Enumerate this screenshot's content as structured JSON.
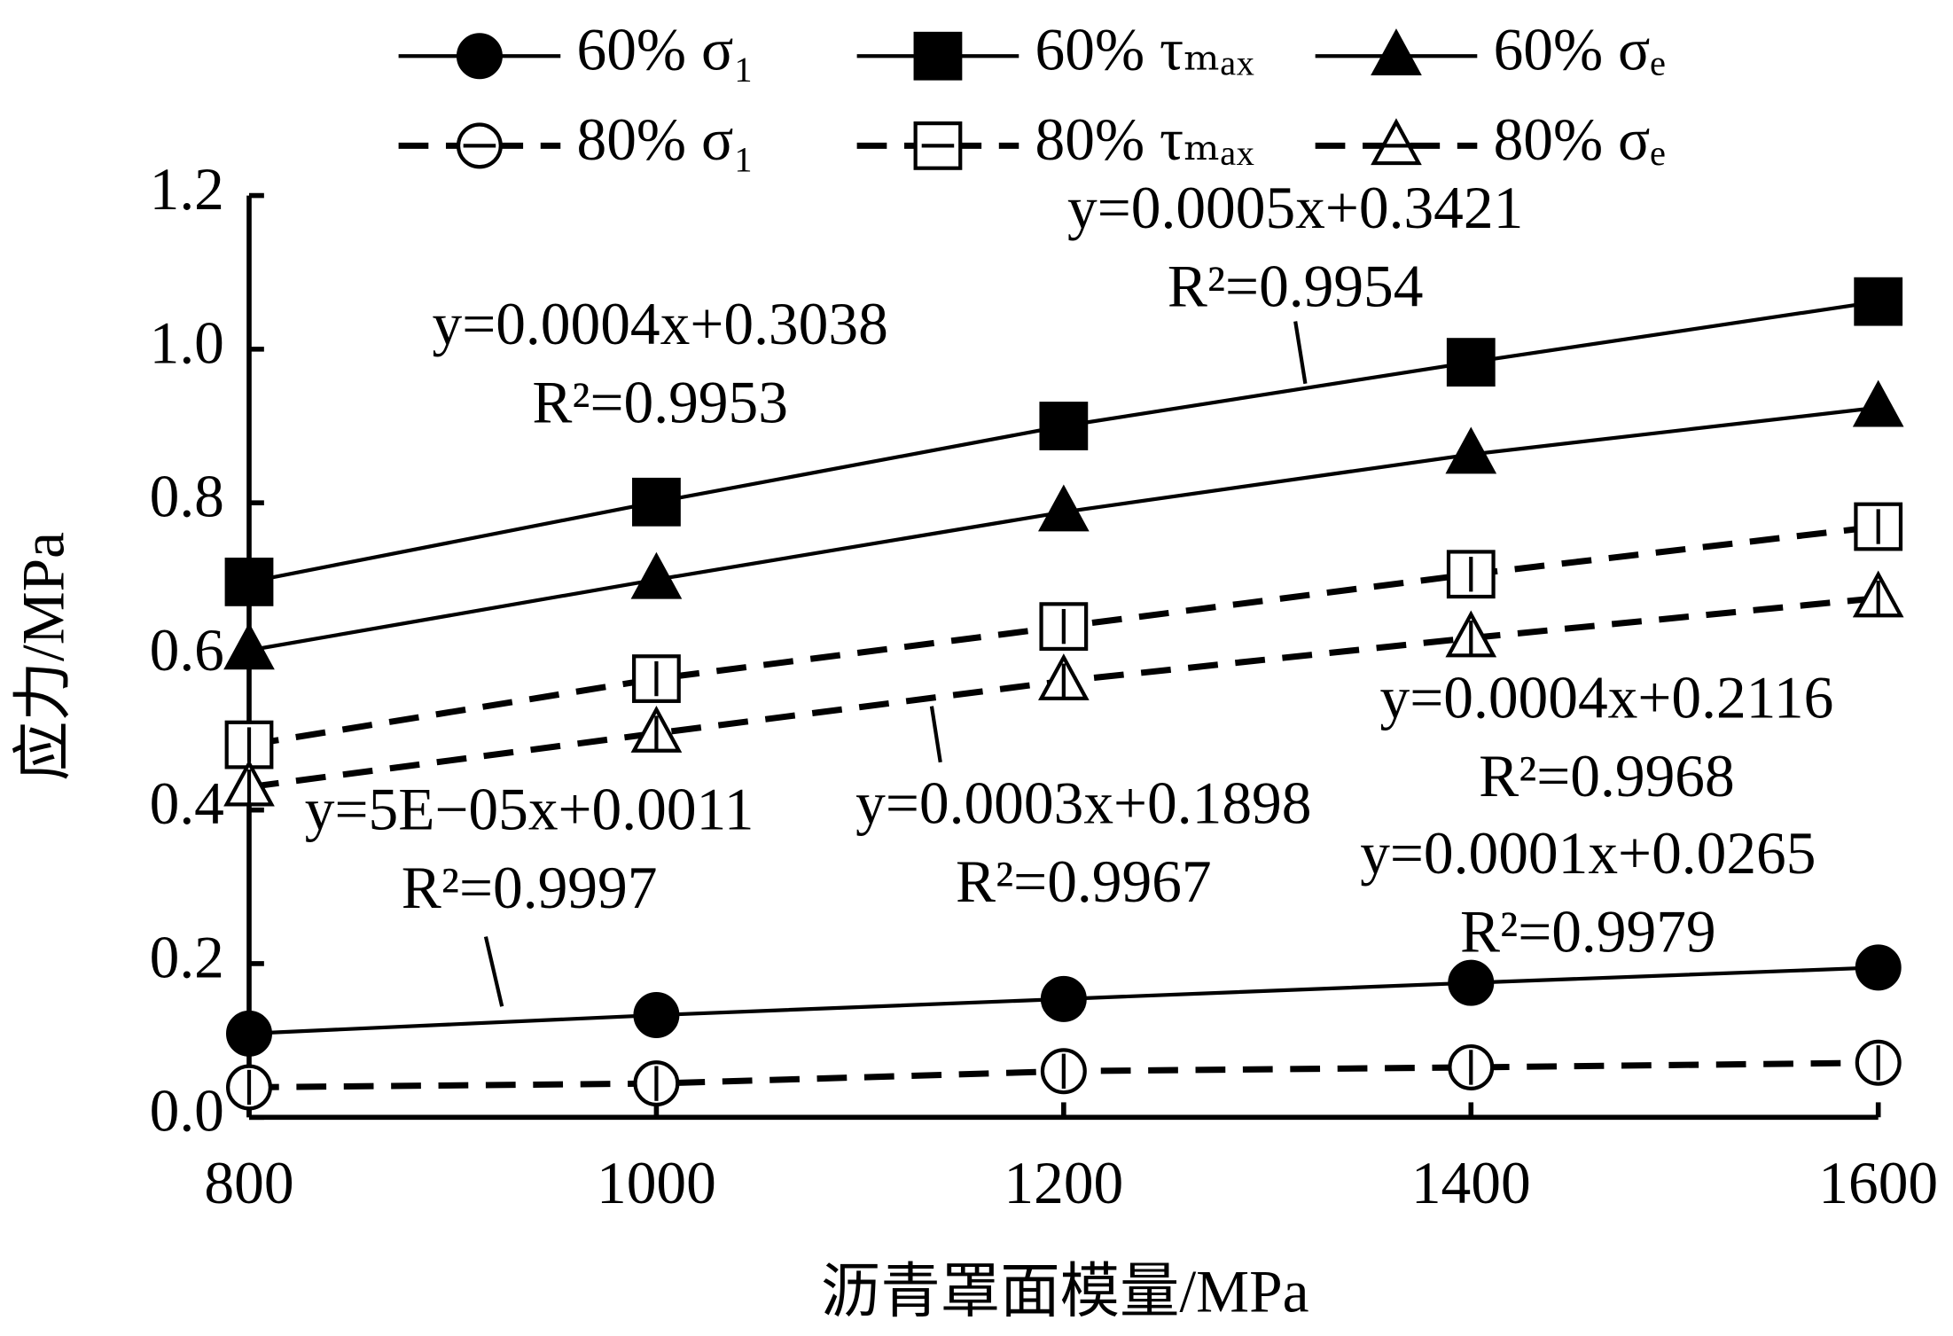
{
  "chart_data": {
    "type": "line",
    "x_label": "沥青罩面模量/MPa",
    "y_label": "应力/MPa",
    "x": [
      800,
      1000,
      1200,
      1400,
      1600
    ],
    "xlim": [
      800,
      1600
    ],
    "xticks": [
      800,
      1000,
      1200,
      1400,
      1600
    ],
    "ylim": [
      0,
      1.2
    ],
    "yticks": [
      {
        "value": 0,
        "label": "0.0"
      },
      0.2,
      0.4,
      0.6,
      0.8,
      {
        "value": 1,
        "label": "1.0"
      },
      1.2
    ],
    "series": [
      {
        "name": "60% σ₁",
        "color": "#000000",
        "marker": "circle",
        "filled": true,
        "dashed": false,
        "values": [
          0.109,
          0.133,
          0.154,
          0.175,
          0.195
        ]
      },
      {
        "name": "60% τₘₐₓ",
        "color": "#000000",
        "marker": "square",
        "filled": true,
        "dashed": false,
        "values": [
          0.697,
          0.801,
          0.9,
          0.983,
          1.062
        ]
      },
      {
        "name": "60% σₑ",
        "color": "#000000",
        "marker": "triangle",
        "filled": true,
        "dashed": false,
        "values": [
          0.608,
          0.7,
          0.788,
          0.863,
          0.924
        ]
      },
      {
        "name": "80% σ₁",
        "color": "#000000",
        "marker": "circle",
        "filled": false,
        "dashed": true,
        "values": [
          0.039,
          0.044,
          0.06,
          0.065,
          0.071
        ]
      },
      {
        "name": "80% τₘₐₓ",
        "color": "#000000",
        "marker": "square",
        "filled": false,
        "dashed": true,
        "values": [
          0.485,
          0.571,
          0.639,
          0.707,
          0.769
        ]
      },
      {
        "name": "80% σₑ",
        "color": "#000000",
        "marker": "triangle",
        "filled": false,
        "dashed": true,
        "values": [
          0.43,
          0.5,
          0.568,
          0.624,
          0.676
        ]
      }
    ],
    "annotations": [
      {
        "equation": "y=0.0004x+0.3038",
        "r2": "R²=0.9953"
      },
      {
        "equation": "y=0.0005x+0.3421",
        "r2": "R²=0.9954"
      },
      {
        "equation": "y=0.0004x+0.2116",
        "r2": "R²=0.9968"
      },
      {
        "equation": "y=5E−05x+0.0011",
        "r2": "R²=0.9997"
      },
      {
        "equation": "y=0.0003x+0.1898",
        "r2": "R²=0.9967"
      },
      {
        "equation": "y=0.0001x+0.0265",
        "r2": "R²=0.9979"
      }
    ]
  }
}
